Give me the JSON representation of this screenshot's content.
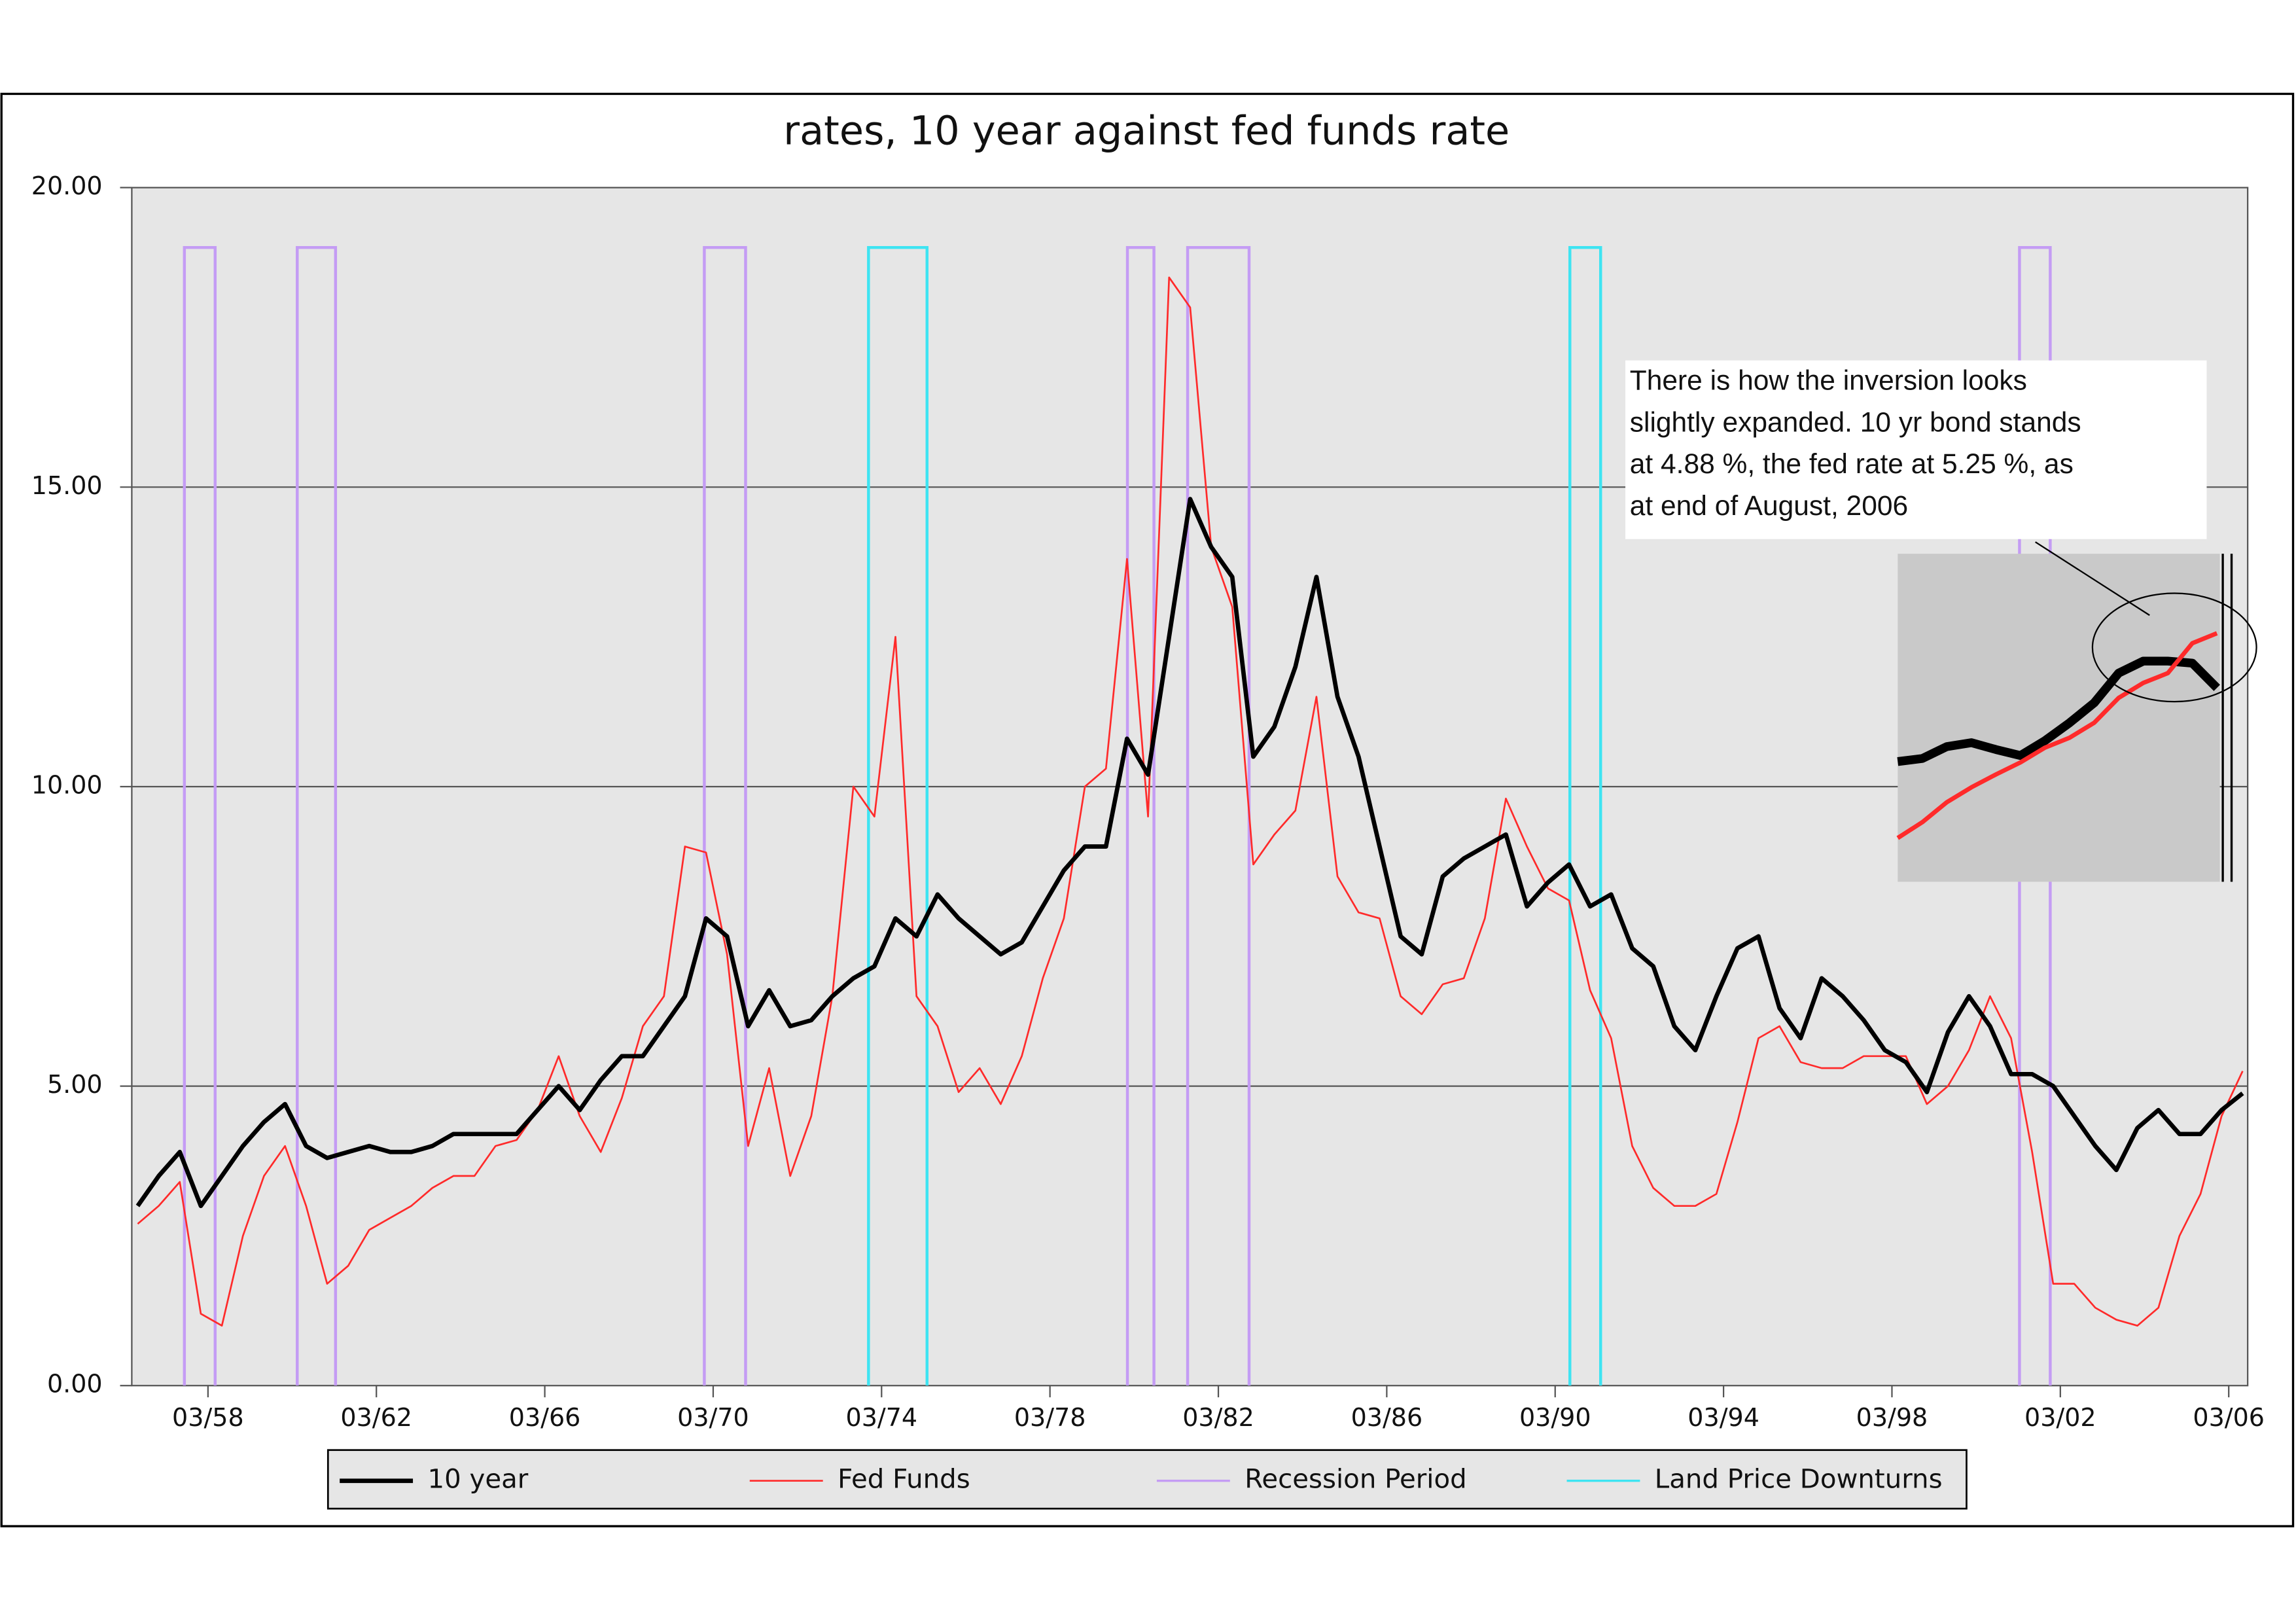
{
  "chart_data": {
    "type": "line",
    "title": "rates, 10 year against  fed funds rate",
    "xlim": [
      1956.36,
      2006.62
    ],
    "xticks": [
      {
        "value": 1958.17,
        "label": "03/58"
      },
      {
        "value": 1962.17,
        "label": "03/62"
      },
      {
        "value": 1966.17,
        "label": "03/66"
      },
      {
        "value": 1970.17,
        "label": "03/70"
      },
      {
        "value": 1974.17,
        "label": "03/74"
      },
      {
        "value": 1978.17,
        "label": "03/78"
      },
      {
        "value": 1982.17,
        "label": "03/82"
      },
      {
        "value": 1986.17,
        "label": "03/86"
      },
      {
        "value": 1990.17,
        "label": "03/90"
      },
      {
        "value": 1994.17,
        "label": "03/94"
      },
      {
        "value": 1998.17,
        "label": "03/98"
      },
      {
        "value": 2002.17,
        "label": "03/02"
      },
      {
        "value": 2006.17,
        "label": "03/06"
      }
    ],
    "ylim": [
      0,
      20
    ],
    "yticks": [
      {
        "value": 0,
        "label": "0.00"
      },
      {
        "value": 5,
        "label": "5.00"
      },
      {
        "value": 10,
        "label": "10.00"
      },
      {
        "value": 15,
        "label": "15.00"
      },
      {
        "value": 20,
        "label": "20.00"
      }
    ],
    "grid": true,
    "x": [
      1956.5,
      1957,
      1957.5,
      1958,
      1958.5,
      1959,
      1959.5,
      1960,
      1960.5,
      1961,
      1961.5,
      1962,
      1962.5,
      1963,
      1963.5,
      1964,
      1964.5,
      1965,
      1965.5,
      1966,
      1966.5,
      1967,
      1967.5,
      1968,
      1968.5,
      1969,
      1969.5,
      1970,
      1970.5,
      1971,
      1971.5,
      1972,
      1972.5,
      1973,
      1973.5,
      1974,
      1974.5,
      1975,
      1975.5,
      1976,
      1976.5,
      1977,
      1977.5,
      1978,
      1978.5,
      1979,
      1979.5,
      1980,
      1980.5,
      1981,
      1981.5,
      1982,
      1982.5,
      1983,
      1983.5,
      1984,
      1984.5,
      1985,
      1985.5,
      1986,
      1986.5,
      1987,
      1987.5,
      1988,
      1988.5,
      1989,
      1989.5,
      1990,
      1990.5,
      1991,
      1991.5,
      1992,
      1992.5,
      1993,
      1993.5,
      1994,
      1994.5,
      1995,
      1995.5,
      1996,
      1996.5,
      1997,
      1997.5,
      1998,
      1998.5,
      1999,
      1999.5,
      2000,
      2000.5,
      2001,
      2001.5,
      2002,
      2002.5,
      2003,
      2003.5,
      2004,
      2004.5,
      2005,
      2005.5,
      2006,
      2006.5
    ],
    "series": [
      {
        "name": "10 year",
        "color": "#000000",
        "width": 3,
        "values": [
          3.0,
          3.5,
          3.9,
          3.0,
          3.5,
          4.0,
          4.4,
          4.7,
          4.0,
          3.8,
          3.9,
          4.0,
          3.9,
          3.9,
          4.0,
          4.2,
          4.2,
          4.2,
          4.2,
          4.6,
          5.0,
          4.6,
          5.1,
          5.5,
          5.5,
          6.0,
          6.5,
          7.8,
          7.5,
          6.0,
          6.6,
          6.0,
          6.1,
          6.5,
          6.8,
          7.0,
          7.8,
          7.5,
          8.2,
          7.8,
          7.5,
          7.2,
          7.4,
          8.0,
          8.6,
          9.0,
          9.0,
          10.8,
          10.2,
          12.5,
          14.8,
          14.0,
          13.5,
          10.5,
          11.0,
          12.0,
          13.5,
          11.5,
          10.5,
          9.0,
          7.5,
          7.2,
          8.5,
          8.8,
          9.0,
          9.2,
          8.0,
          8.4,
          8.7,
          8.0,
          8.2,
          7.3,
          7.0,
          6.0,
          5.6,
          6.5,
          7.3,
          7.5,
          6.3,
          5.8,
          6.8,
          6.5,
          6.1,
          5.6,
          5.4,
          4.9,
          5.9,
          6.5,
          6.0,
          5.2,
          5.2,
          5.0,
          4.5,
          4.0,
          3.6,
          4.3,
          4.6,
          4.2,
          4.2,
          4.6,
          4.88
        ]
      },
      {
        "name": "Fed Funds",
        "color": "#ff2a2a",
        "width": 1.2,
        "values": [
          2.7,
          3.0,
          3.4,
          1.2,
          1.0,
          2.5,
          3.5,
          4.0,
          3.0,
          1.7,
          2.0,
          2.6,
          2.8,
          3.0,
          3.3,
          3.5,
          3.5,
          4.0,
          4.1,
          4.6,
          5.5,
          4.5,
          3.9,
          4.8,
          6.0,
          6.5,
          9.0,
          8.9,
          7.2,
          4.0,
          5.3,
          3.5,
          4.5,
          6.5,
          10.0,
          9.5,
          12.5,
          6.5,
          6.0,
          4.9,
          5.3,
          4.7,
          5.5,
          6.8,
          7.8,
          10.0,
          10.3,
          13.8,
          9.5,
          18.5,
          18.0,
          14.0,
          13.0,
          8.7,
          9.2,
          9.6,
          11.5,
          8.5,
          7.9,
          7.8,
          6.5,
          6.2,
          6.7,
          6.8,
          7.8,
          9.8,
          9.0,
          8.3,
          8.1,
          6.6,
          5.8,
          4.0,
          3.3,
          3.0,
          3.0,
          3.2,
          4.4,
          5.8,
          6.0,
          5.4,
          5.3,
          5.3,
          5.5,
          5.5,
          5.5,
          4.7,
          5.0,
          5.6,
          6.5,
          5.8,
          3.9,
          1.7,
          1.7,
          1.3,
          1.1,
          1.0,
          1.3,
          2.5,
          3.2,
          4.5,
          5.25
        ]
      }
    ],
    "periods": [
      {
        "name": "Recession Period",
        "color": "#c49cf4",
        "level": 19,
        "intervals": [
          [
            1957.61,
            1958.34
          ],
          [
            1960.29,
            1961.2
          ],
          [
            1969.96,
            1970.94
          ],
          [
            1980.01,
            1980.64
          ],
          [
            1981.44,
            1982.9
          ],
          [
            2001.2,
            2001.93
          ]
        ]
      },
      {
        "name": "Land Price Downturns",
        "color": "#3ee4f2",
        "level": 19,
        "intervals": [
          [
            1973.86,
            1975.25
          ],
          [
            1990.52,
            1991.25
          ]
        ]
      }
    ],
    "annotation": [
      "There is how the inversion looks",
      "slightly expanded.  10 yr bond stands",
      "at 4.88 %, the fed rate at 5.25 %, as",
      "at end of August, 2006"
    ],
    "inset": {
      "ylim": [
        2.6,
        5.9
      ],
      "series": [
        {
          "color": "#000000",
          "values": [
            3.81,
            3.84,
            3.96,
            4.0,
            3.93,
            3.87,
            4.02,
            4.2,
            4.4,
            4.7,
            4.82,
            4.82,
            4.8,
            4.55
          ]
        },
        {
          "color": "#ff2a2a",
          "values": [
            3.04,
            3.2,
            3.4,
            3.55,
            3.68,
            3.8,
            3.95,
            4.05,
            4.2,
            4.45,
            4.6,
            4.7,
            5.0,
            5.1
          ]
        }
      ]
    }
  }
}
